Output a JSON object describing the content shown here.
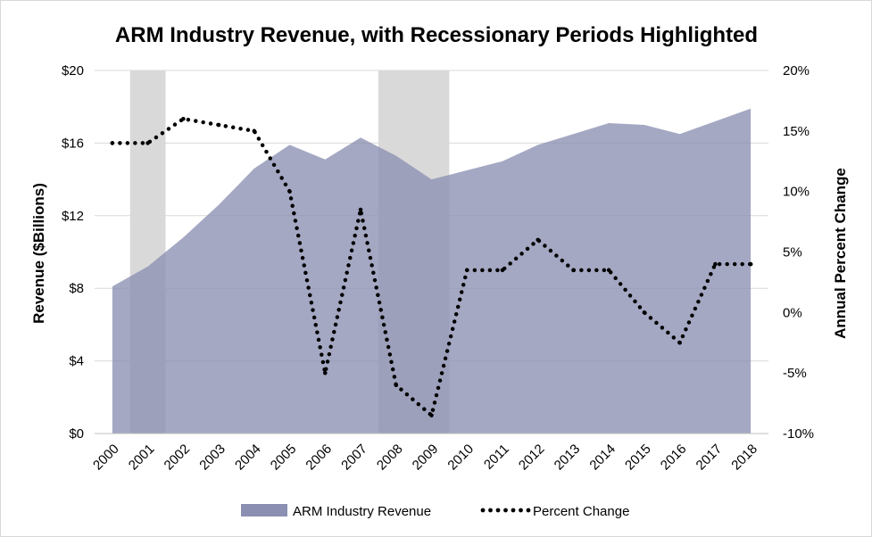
{
  "chart_data": {
    "type": "area",
    "title": "ARM Industry Revenue, with Recessionary Periods Highlighted",
    "categories": [
      "2000",
      "2001",
      "2002",
      "2003",
      "2004",
      "2005",
      "2006",
      "2007",
      "2008",
      "2009",
      "2010",
      "2011",
      "2012",
      "2013",
      "2014",
      "2015",
      "2016",
      "2017",
      "2018"
    ],
    "series": [
      {
        "name": "ARM Industry Revenue",
        "type": "area",
        "axis": "left",
        "color": "#8b8fb2",
        "values": [
          8.1,
          9.2,
          10.8,
          12.6,
          14.6,
          15.9,
          15.1,
          16.3,
          15.3,
          14.0,
          14.5,
          15.0,
          15.9,
          16.5,
          17.1,
          17.0,
          16.5,
          17.2,
          17.9
        ]
      },
      {
        "name": "Percent Change",
        "type": "line",
        "style": "dotted",
        "axis": "right",
        "color": "#000000",
        "values": [
          14.0,
          14.0,
          16.0,
          15.5,
          15.0,
          10.0,
          -5.0,
          8.5,
          -6.0,
          -8.5,
          3.5,
          3.5,
          6.0,
          3.5,
          3.5,
          0.0,
          -2.5,
          4.0,
          4.0
        ]
      }
    ],
    "recessions": [
      {
        "start": 2000.5,
        "end": 2001.5
      },
      {
        "start": 2007.5,
        "end": 2009.5
      }
    ],
    "y_left": {
      "label": "Revenue ($Billions)",
      "ylim": [
        0,
        20
      ],
      "ticks": [
        0,
        4,
        8,
        12,
        16,
        20
      ],
      "tick_labels": [
        "$0",
        "$4",
        "$8",
        "$12",
        "$16",
        "$20"
      ]
    },
    "y_right": {
      "label": "Annual Percent Change",
      "ylim": [
        -10,
        20
      ],
      "ticks": [
        -10,
        -5,
        0,
        5,
        10,
        15,
        20
      ],
      "tick_labels": [
        "-10%",
        "-5%",
        "0%",
        "5%",
        "10%",
        "15%",
        "20%"
      ]
    },
    "grid": true,
    "legend_position": "bottom",
    "colors": {
      "area": "#8b8fb2",
      "recession": "#d9d9d9",
      "line": "#000000",
      "grid": "#d9d9d9"
    }
  }
}
